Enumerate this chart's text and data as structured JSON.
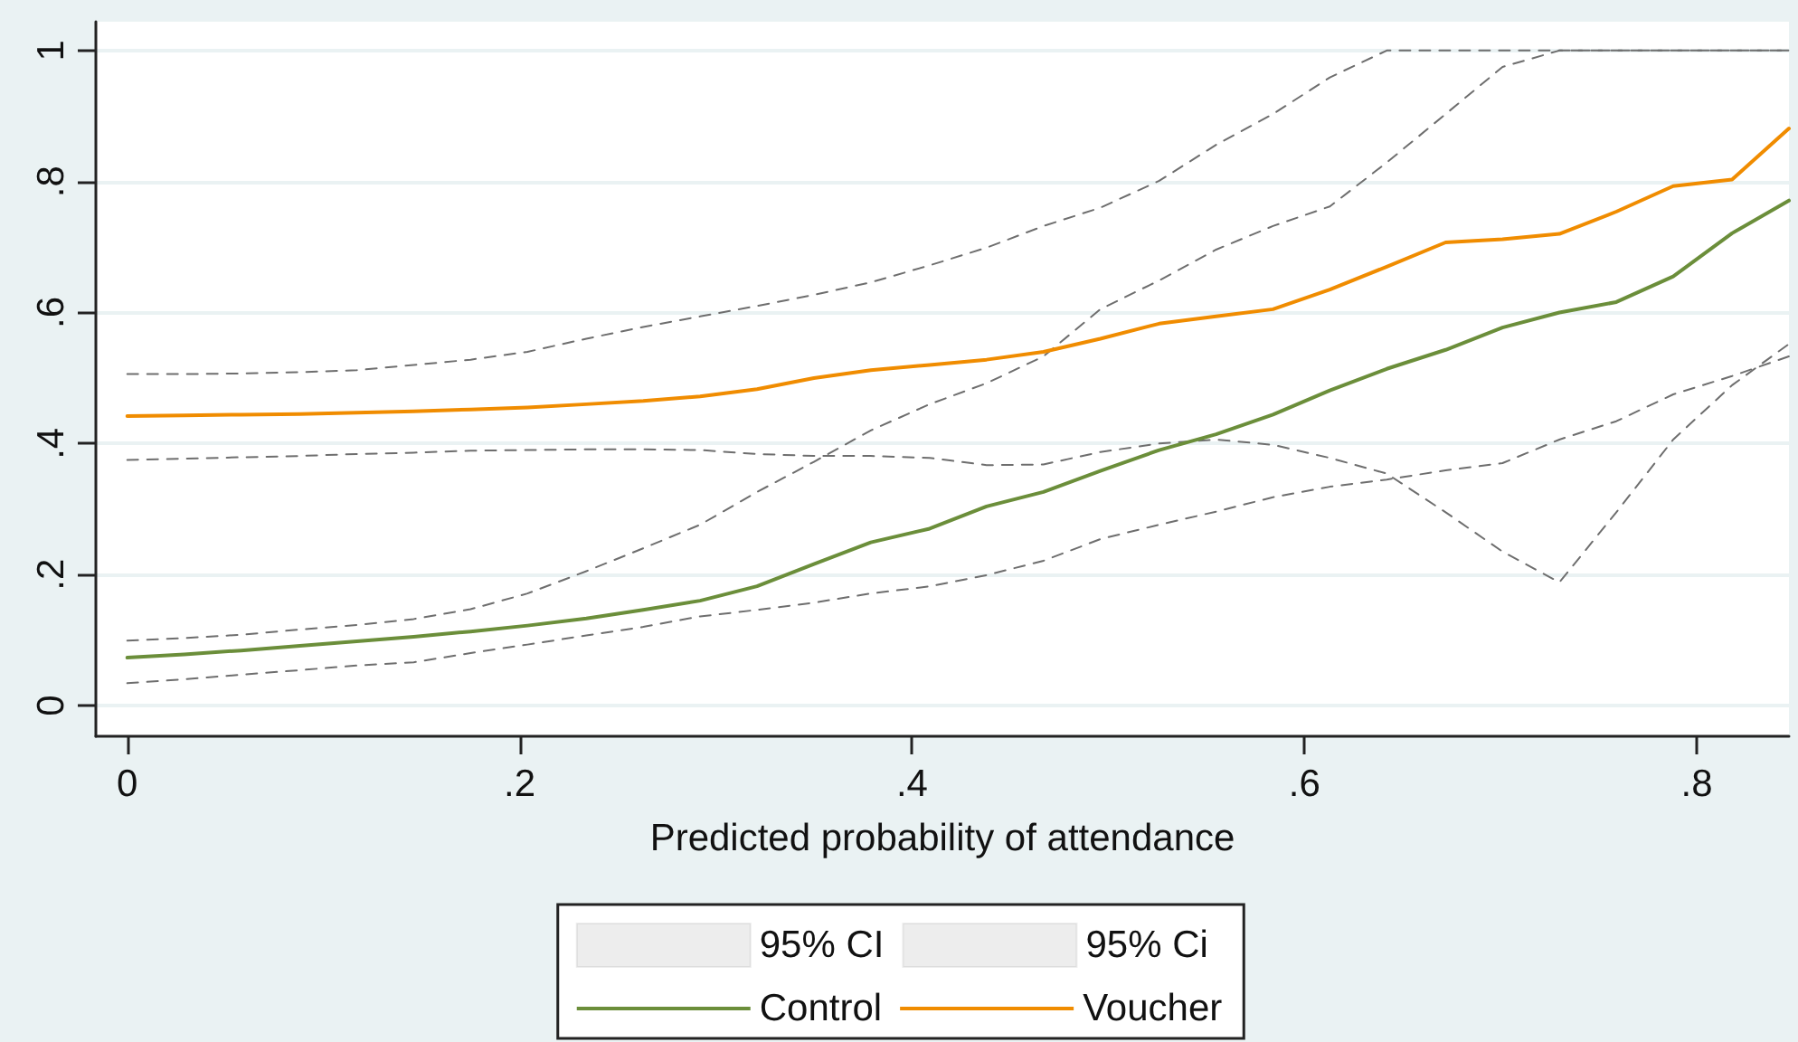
{
  "chart_data": {
    "type": "line",
    "xlabel": "Predicted probability of attendance",
    "x": [
      0,
      0.029,
      0.058,
      0.088,
      0.117,
      0.146,
      0.175,
      0.204,
      0.234,
      0.263,
      0.292,
      0.321,
      0.35,
      0.379,
      0.409,
      0.438,
      0.467,
      0.496,
      0.526,
      0.555,
      0.584,
      0.613,
      0.642,
      0.672,
      0.701,
      0.73,
      0.759,
      0.788,
      0.818,
      0.847
    ],
    "series": [
      {
        "name": "95% CI",
        "color": "#6e6e6e",
        "line_style": "dashed",
        "values": [
          0.099,
          0.103,
          0.108,
          0.116,
          0.123,
          0.132,
          0.147,
          0.171,
          0.205,
          0.24,
          0.276,
          0.326,
          0.372,
          0.42,
          0.46,
          0.492,
          0.533,
          0.605,
          0.649,
          0.696,
          0.732,
          0.762,
          0.829,
          0.903,
          0.975,
          1,
          1,
          1,
          1,
          1
        ]
      },
      {
        "color": "#6e6e6e",
        "line_style": "dashed",
        "values": [
          0.034,
          0.04,
          0.047,
          0.054,
          0.061,
          0.066,
          0.08,
          0.093,
          0.107,
          0.12,
          0.136,
          0.146,
          0.157,
          0.171,
          0.182,
          0.199,
          0.221,
          0.254,
          0.276,
          0.296,
          0.318,
          0.334,
          0.345,
          0.359,
          0.37,
          0.406,
          0.434,
          0.475,
          0.503,
          0.533
        ]
      },
      {
        "name": "95% Ci",
        "color": "#6e6e6e",
        "line_style": "dashed",
        "values": [
          0.506,
          0.506,
          0.507,
          0.509,
          0.512,
          0.52,
          0.528,
          0.54,
          0.56,
          0.578,
          0.594,
          0.61,
          0.627,
          0.646,
          0.672,
          0.699,
          0.732,
          0.76,
          0.801,
          0.856,
          0.903,
          0.959,
          1,
          1,
          1,
          1,
          1,
          1,
          1,
          1
        ]
      },
      {
        "color": "#6e6e6e",
        "line_style": "dashed",
        "values": [
          0.375,
          0.377,
          0.379,
          0.381,
          0.384,
          0.386,
          0.389,
          0.39,
          0.391,
          0.391,
          0.39,
          0.384,
          0.381,
          0.381,
          0.378,
          0.367,
          0.368,
          0.387,
          0.4,
          0.406,
          0.398,
          0.378,
          0.354,
          0.295,
          0.235,
          0.188,
          0.295,
          0.406,
          0.489,
          0.552
        ]
      },
      {
        "name": "Control",
        "color": "#6b8e3a",
        "values": [
          0.073,
          0.078,
          0.084,
          0.091,
          0.098,
          0.105,
          0.113,
          0.122,
          0.133,
          0.146,
          0.16,
          0.182,
          0.216,
          0.249,
          0.27,
          0.304,
          0.326,
          0.358,
          0.39,
          0.414,
          0.444,
          0.481,
          0.514,
          0.543,
          0.577,
          0.6,
          0.616,
          0.655,
          0.721,
          0.771
        ]
      },
      {
        "name": "Voucher",
        "color": "#f08c00",
        "values": [
          0.442,
          0.443,
          0.444,
          0.445,
          0.447,
          0.449,
          0.452,
          0.455,
          0.46,
          0.465,
          0.472,
          0.483,
          0.5,
          0.512,
          0.52,
          0.528,
          0.54,
          0.56,
          0.583,
          0.594,
          0.605,
          0.635,
          0.67,
          0.707,
          0.712,
          0.72,
          0.754,
          0.793,
          0.803,
          0.881
        ]
      }
    ],
    "xlim": [
      -0.016,
      0.847
    ],
    "xticks": [
      0,
      {
        "value": 0.2,
        "label": ".2"
      },
      {
        "value": 0.4,
        "label": ".4"
      },
      {
        "value": 0.6,
        "label": ".6"
      },
      {
        "value": 0.8,
        "label": ".8"
      }
    ],
    "ylim": [
      -0.047,
      1.044
    ],
    "yticks": [
      0,
      {
        "value": 0.2,
        "label": ".2"
      },
      {
        "value": 0.4,
        "label": ".4"
      },
      {
        "value": 0.6,
        "label": ".6"
      },
      {
        "value": 0.8,
        "label": ".8"
      },
      1
    ],
    "grid": "y",
    "legend": "bottom",
    "line_style": "solid",
    "marker": "none"
  }
}
